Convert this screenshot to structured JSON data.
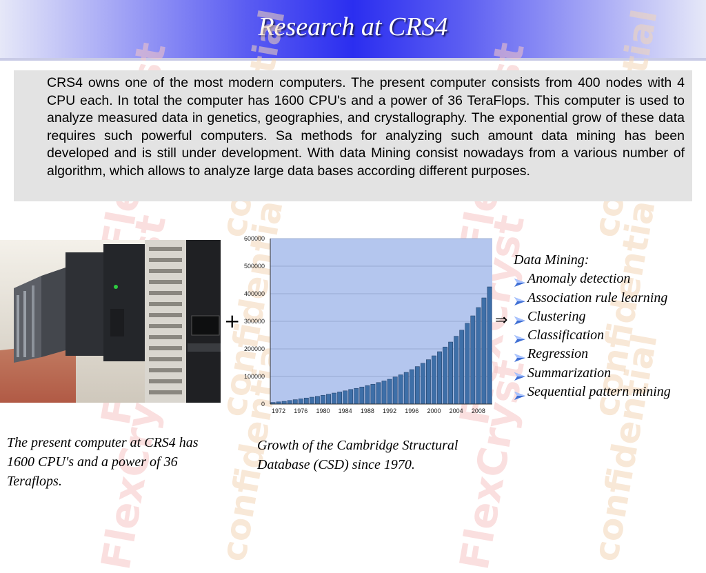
{
  "slide": {
    "title": "Research at CRS4",
    "paragraph": "CRS4 owns one of the most modern computers. The present computer consists from 400 nodes with 4 CPU each. In total the computer has 1600 CPU's and a power of 36 TeraFlops. This computer is used to analyze measured data in genetics, geographies, and crystallography. The exponential grow of these data requires such powerful computers. Sa methods for analyzing such amount data mining has been developed and is still under development. With data Mining consist nowadays from a various number of algorithm, which allows to analyze large data bases according different purposes.",
    "plus_symbol": "+",
    "arrow_symbol": "⇒",
    "photo_caption": "The present computer at CRS4 has 1600 CPU's and a power of 36 Teraflops.",
    "chart_caption": "Growth of the Cambridge Structural Database (CSD) since 1970.",
    "data_mining": {
      "title": "Data Mining:",
      "items": [
        " Anomaly detection",
        " Association rule learning",
        "Clustering",
        "Classification",
        "Regression",
        "Summarization",
        "Sequential pattern mining"
      ]
    },
    "watermark": {
      "brand": "FlexCryst",
      "stamp": "confidential"
    },
    "colors": {
      "header_center": "#2b2ef0",
      "header_edge": "#e6e8f8",
      "bar_fill": "#3e6fa8",
      "plot_background": "#b4c6ee",
      "bullet": "#3f6fd4"
    },
    "photo_icon": "server-room-photo"
  },
  "chart_data": {
    "type": "bar",
    "x": [
      1971,
      1972,
      1973,
      1974,
      1975,
      1976,
      1977,
      1978,
      1979,
      1980,
      1981,
      1982,
      1983,
      1984,
      1985,
      1986,
      1987,
      1988,
      1989,
      1990,
      1991,
      1992,
      1993,
      1994,
      1995,
      1996,
      1997,
      1998,
      1999,
      2000,
      2001,
      2002,
      2003,
      2004,
      2005,
      2006,
      2007,
      2008,
      2009,
      2010
    ],
    "values": [
      6000,
      8000,
      10000,
      13000,
      16000,
      19000,
      22000,
      25000,
      28000,
      32000,
      36000,
      40000,
      44000,
      48000,
      53000,
      57000,
      62000,
      67000,
      72000,
      78000,
      84000,
      90000,
      98000,
      106000,
      115000,
      125000,
      136000,
      148000,
      161000,
      175000,
      190000,
      207000,
      225000,
      246000,
      268000,
      293000,
      320000,
      350000,
      385000,
      425000
    ],
    "x_tick_labels": [
      "1972",
      "1976",
      "1980",
      "1984",
      "1988",
      "1992",
      "1996",
      "2000",
      "2004",
      "2008"
    ],
    "y_tick_labels": [
      "0",
      "100000",
      "200000",
      "300000",
      "400000",
      "500000",
      "600000"
    ],
    "ylim": [
      0,
      600000
    ],
    "grid": true,
    "title": "",
    "xlabel": "",
    "ylabel": ""
  }
}
